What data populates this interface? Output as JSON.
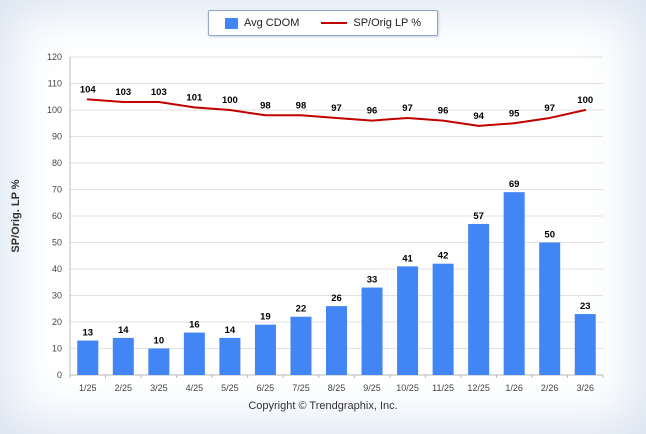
{
  "legend": {
    "bar_label": "Avg CDOM",
    "line_label": "SP/Orig LP %"
  },
  "ylabel": "SP/Orig. LP %",
  "footer": "Copyright © Trendgraphix, Inc.",
  "colors": {
    "bar": "#4285f4",
    "line": "#c00000",
    "grid": "#e2e2e2"
  },
  "chart_data": {
    "type": "bar+line",
    "categories": [
      "1/25",
      "2/25",
      "3/25",
      "4/25",
      "5/25",
      "6/25",
      "7/25",
      "8/25",
      "9/25",
      "10/25",
      "11/25",
      "12/25",
      "1/26",
      "2/26",
      "3/26"
    ],
    "series": [
      {
        "name": "Avg CDOM",
        "type": "bar",
        "values": [
          13,
          14,
          10,
          16,
          14,
          19,
          22,
          26,
          33,
          41,
          42,
          57,
          69,
          50,
          23
        ]
      },
      {
        "name": "SP/Orig LP %",
        "type": "line",
        "values": [
          104,
          103,
          103,
          101,
          100,
          98,
          98,
          97,
          96,
          97,
          96,
          94,
          95,
          97,
          100
        ]
      }
    ],
    "title": "",
    "xlabel": "",
    "ylabel": "SP/Orig. LP %",
    "ylim": [
      0,
      120
    ],
    "ytick_step": 10,
    "grid": true,
    "legend_position": "top"
  }
}
